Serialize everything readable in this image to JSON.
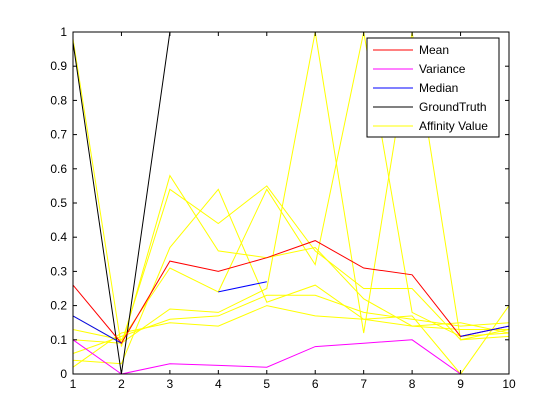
{
  "chart_data": {
    "type": "line",
    "title": "",
    "xlabel": "",
    "ylabel": "",
    "xlim": [
      1,
      10
    ],
    "ylim": [
      0,
      1
    ],
    "x_ticks": [
      "1",
      "2",
      "3",
      "4",
      "5",
      "6",
      "7",
      "8",
      "9",
      "10"
    ],
    "y_ticks": [
      "0",
      "0.1",
      "0.2",
      "0.3",
      "0.4",
      "0.5",
      "0.6",
      "0.7",
      "0.8",
      "0.9",
      "1"
    ],
    "grid": false,
    "legend_position": "top-right",
    "legend": [
      {
        "name": "Mean",
        "color": "#ff0000"
      },
      {
        "name": "Variance",
        "color": "#ff00ff"
      },
      {
        "name": "Median",
        "color": "#0000ff"
      },
      {
        "name": "GroundTruth",
        "color": "#000000"
      },
      {
        "name": "Affinity Value",
        "color": "#ffff00"
      }
    ],
    "series": [
      {
        "name": "Affinity Value",
        "color": "#ffff00",
        "x": [
          1,
          2,
          3,
          4,
          5,
          6,
          7,
          8,
          9,
          10
        ],
        "y": [
          0.98,
          0.08,
          0.58,
          0.36,
          0.34,
          0.37,
          0.22,
          0.14,
          0.13,
          0.13
        ]
      },
      {
        "name": "Affinity Value",
        "color": "#ffff00",
        "x": [
          1,
          2,
          3,
          4,
          5,
          6,
          7,
          8,
          9,
          10
        ],
        "y": [
          0.17,
          0.09,
          0.54,
          0.44,
          0.55,
          0.36,
          0.25,
          0.25,
          0.1,
          0.13
        ]
      },
      {
        "name": "Affinity Value",
        "color": "#ffff00",
        "x": [
          1,
          2,
          3,
          4,
          5,
          6,
          7,
          8,
          9,
          10
        ],
        "y": [
          0.13,
          0.1,
          0.31,
          0.24,
          0.54,
          0.32,
          1.0,
          0.18,
          0.11,
          0.12
        ]
      },
      {
        "name": "Affinity Value",
        "color": "#ffff00",
        "x": [
          1,
          2,
          3,
          4,
          5,
          6,
          7,
          8,
          9,
          10
        ],
        "y": [
          0.1,
          0.09,
          0.19,
          0.18,
          0.25,
          1.0,
          0.12,
          1.0,
          0.1,
          0.11
        ]
      },
      {
        "name": "Affinity Value",
        "color": "#ffff00",
        "x": [
          1,
          2,
          3,
          4,
          5,
          6,
          7,
          8,
          9,
          10
        ],
        "y": [
          0.06,
          0.11,
          0.16,
          0.17,
          0.23,
          0.23,
          0.18,
          0.16,
          0.14,
          0.15
        ]
      },
      {
        "name": "Affinity Value",
        "color": "#ffff00",
        "x": [
          1,
          2,
          3,
          4,
          5,
          6,
          7,
          8,
          9,
          10
        ],
        "y": [
          0.04,
          0.03,
          0.37,
          0.54,
          0.21,
          0.26,
          0.16,
          0.14,
          0.15,
          0.12
        ]
      },
      {
        "name": "Affinity Value",
        "color": "#ffff00",
        "x": [
          1,
          2,
          3,
          4,
          5,
          6,
          7,
          8,
          9,
          10
        ],
        "y": [
          0.02,
          0.12,
          0.15,
          0.14,
          0.2,
          0.17,
          0.16,
          0.17,
          0.0,
          0.2
        ]
      },
      {
        "name": "GroundTruth",
        "color": "#000000",
        "x": [
          1,
          2,
          3
        ],
        "y": [
          0.97,
          0.0,
          1.0
        ]
      },
      {
        "name": "Mean",
        "color": "#ff0000",
        "x": [
          1,
          2,
          3,
          4,
          5,
          6,
          7,
          8,
          9,
          10
        ],
        "y": [
          0.26,
          0.09,
          0.33,
          0.3,
          0.34,
          0.39,
          0.31,
          0.29,
          0.11,
          0.14
        ]
      },
      {
        "name": "Variance",
        "color": "#ff00ff",
        "x": [
          1,
          2,
          3,
          4,
          5,
          6,
          7,
          8,
          9,
          10
        ],
        "y": [
          0.1,
          0.0,
          0.03,
          0.025,
          0.02,
          0.08,
          0.09,
          0.1,
          0.0,
          0.0
        ]
      },
      {
        "name": "Median",
        "color": "#0000ff",
        "x": [
          1,
          2
        ],
        "y": [
          0.17,
          0.09
        ]
      },
      {
        "name": "Median",
        "color": "#0000ff",
        "x": [
          4,
          5
        ],
        "y": [
          0.24,
          0.27
        ]
      },
      {
        "name": "Median",
        "color": "#0000ff",
        "x": [
          9,
          10
        ],
        "y": [
          0.11,
          0.14
        ]
      }
    ]
  }
}
